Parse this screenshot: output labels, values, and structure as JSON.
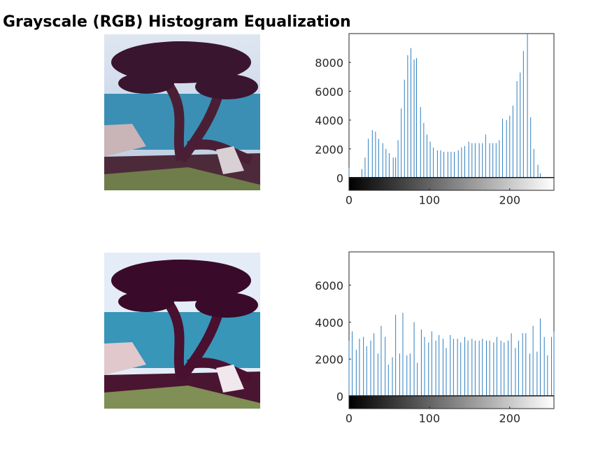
{
  "title": "Grayscale (RGB) Histogram Equalization",
  "chart_data": [
    {
      "type": "stem",
      "color": "#2f7fbf",
      "x": [
        0,
        16,
        20,
        24,
        29,
        33,
        37,
        42,
        46,
        50,
        55,
        58,
        61,
        65,
        69,
        73,
        77,
        81,
        84,
        89,
        93,
        97,
        101,
        105,
        110,
        114,
        118,
        123,
        127,
        131,
        136,
        140,
        144,
        149,
        153,
        157,
        162,
        166,
        170,
        175,
        179,
        183,
        187,
        191,
        196,
        200,
        204,
        209,
        213,
        217,
        222,
        226,
        230,
        235,
        238
      ],
      "values": [
        700,
        600,
        1400,
        2700,
        3300,
        3200,
        2700,
        2400,
        2000,
        1700,
        1400,
        1400,
        2600,
        4800,
        6800,
        8500,
        9000,
        8200,
        8300,
        4900,
        3800,
        3000,
        2500,
        2100,
        1900,
        1900,
        1800,
        1800,
        1800,
        1800,
        1900,
        2100,
        2200,
        2500,
        2400,
        2400,
        2400,
        2400,
        3000,
        2400,
        2400,
        2400,
        2600,
        4100,
        4000,
        4300,
        5000,
        6700,
        7300,
        8800,
        10000,
        4200,
        2000,
        900,
        300
      ],
      "xlim": [
        0,
        255
      ],
      "xticks": [
        0,
        100,
        200
      ],
      "ylim": [
        0,
        10000
      ],
      "yticks": [
        0,
        2000,
        4000,
        6000,
        8000
      ]
    },
    {
      "type": "stem",
      "color": "#2f7fbf",
      "x": [
        0,
        4,
        9,
        13,
        18,
        22,
        27,
        31,
        36,
        40,
        45,
        49,
        54,
        58,
        63,
        67,
        72,
        76,
        81,
        85,
        90,
        94,
        99,
        103,
        108,
        112,
        117,
        121,
        126,
        130,
        135,
        139,
        144,
        148,
        153,
        157,
        162,
        166,
        171,
        175,
        180,
        184,
        189,
        193,
        198,
        202,
        207,
        211,
        216,
        220,
        225,
        229,
        234,
        238,
        243,
        247,
        252,
        255
      ],
      "values": [
        3000,
        3500,
        2500,
        3100,
        3200,
        2700,
        3000,
        3400,
        2300,
        3800,
        3200,
        1700,
        2100,
        4400,
        2300,
        4500,
        2200,
        2300,
        4000,
        1800,
        3600,
        3200,
        2900,
        3500,
        3000,
        3300,
        3100,
        2600,
        3300,
        3100,
        3100,
        2900,
        3200,
        3000,
        3100,
        3000,
        3000,
        3100,
        3000,
        3000,
        2900,
        3200,
        3000,
        2900,
        3000,
        3400,
        2600,
        3000,
        3400,
        3400,
        2300,
        3800,
        2400,
        4200,
        3200,
        2200,
        3200,
        3500
      ],
      "xlim": [
        0,
        255
      ],
      "xticks": [
        0,
        100,
        200
      ],
      "ylim": [
        0,
        7800
      ],
      "yticks": [
        0,
        2000,
        4000,
        6000
      ]
    }
  ]
}
